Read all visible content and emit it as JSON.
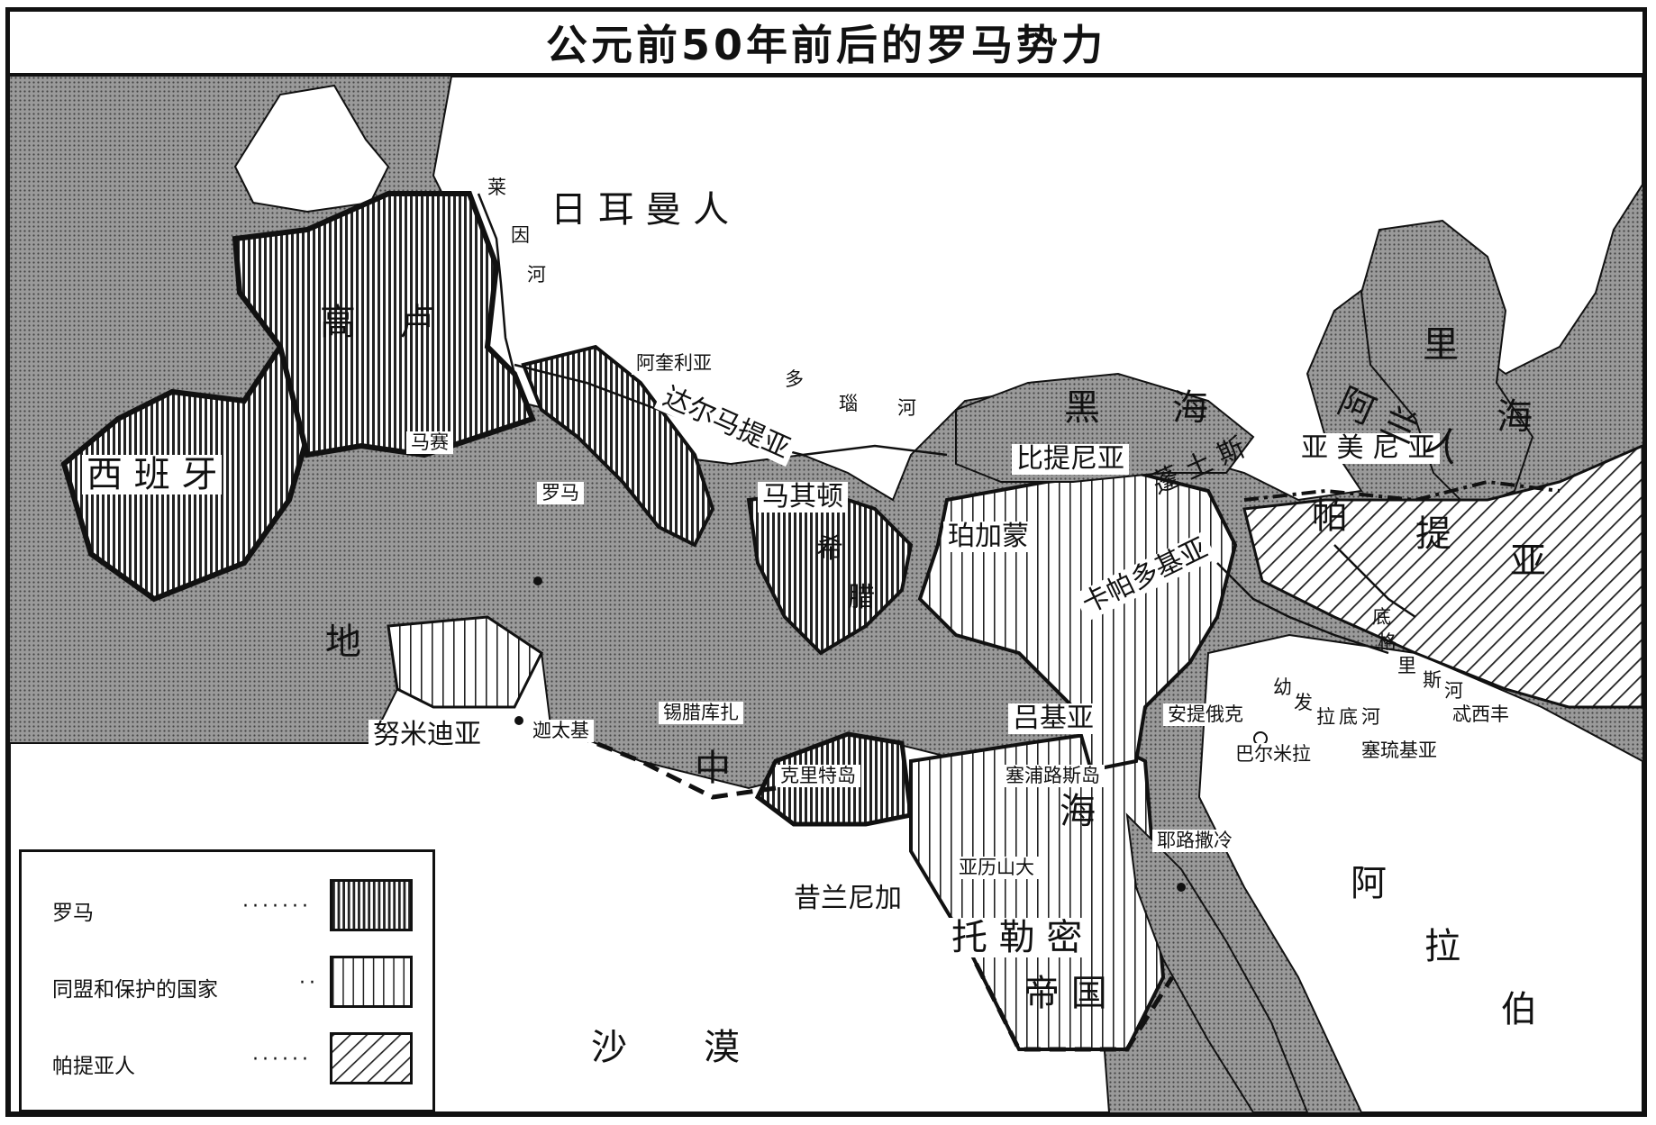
{
  "title": "公元前50年前后的罗马势力",
  "colors": {
    "sea": "#8a8a8a",
    "land": "#ffffff",
    "ink": "#111111"
  },
  "labels": {
    "gaul_1": "高",
    "gaul_2": "卢",
    "spain": "西 班 牙",
    "germans": "日 耳 曼 人",
    "rhine_1": "莱",
    "rhine_2": "因",
    "rhine_3": "河",
    "danube_1": "多",
    "danube_2": "瑙",
    "danube_3": "河",
    "aquileia": "阿奎利亚",
    "dalmatia": "达尔马提亚",
    "massilia": "马赛",
    "rome": "罗马",
    "macedonia": "马其顿",
    "greece_1": "希",
    "greece_2": "腊",
    "black_sea_1": "黑",
    "black_sea_2": "海",
    "bithynia": "比提尼亚",
    "pontus": "蓬 土 斯",
    "armenia": "亚 美 尼 亚",
    "pergamon": "珀加蒙",
    "cappadocia": "卡帕多基亚",
    "parthia_1": "帕",
    "parthia_2": "提",
    "parthia_3": "亚",
    "alans": "阿 兰 人",
    "caspian_1": "里",
    "caspian_2": "海",
    "tigris_1": "底",
    "tigris_2": "格",
    "tigris_3": "里",
    "tigris_4": "斯",
    "tigris_5": "河",
    "euphrates_1": "幼",
    "euphrates_2": "发",
    "euphrates_3": "拉",
    "euphrates_4": "底",
    "euphrates_5": "河",
    "ctesiphon": "忒西丰",
    "seleucia": "塞琉基亚",
    "lycia": "吕基亚",
    "antioch": "安提俄克",
    "palmyra": "巴尔米拉",
    "numidia": "努米迪亚",
    "carthage": "迦太基",
    "syracuse": "锡腊库扎",
    "med_sea_1": "地",
    "med_sea_2": "中",
    "med_sea_3": "海",
    "crete": "克里特岛",
    "cyprus": "塞浦路斯岛",
    "alexandria": "亚历山大",
    "jerusalem": "耶路撒冷",
    "cyrenaica": "昔兰尼加",
    "ptolemaic_1": "托 勒 密",
    "ptolemaic_2": "帝 国",
    "arabia_1": "阿",
    "arabia_2": "拉",
    "arabia_3": "伯",
    "desert_1": "沙",
    "desert_2": "漠"
  },
  "legend": {
    "items": [
      {
        "label": "罗马",
        "pattern": "rome-hatch"
      },
      {
        "label": "同盟和保护的国家",
        "pattern": "ally-hatch"
      },
      {
        "label": "帕提亚人",
        "pattern": "parthia-hatch"
      }
    ]
  }
}
